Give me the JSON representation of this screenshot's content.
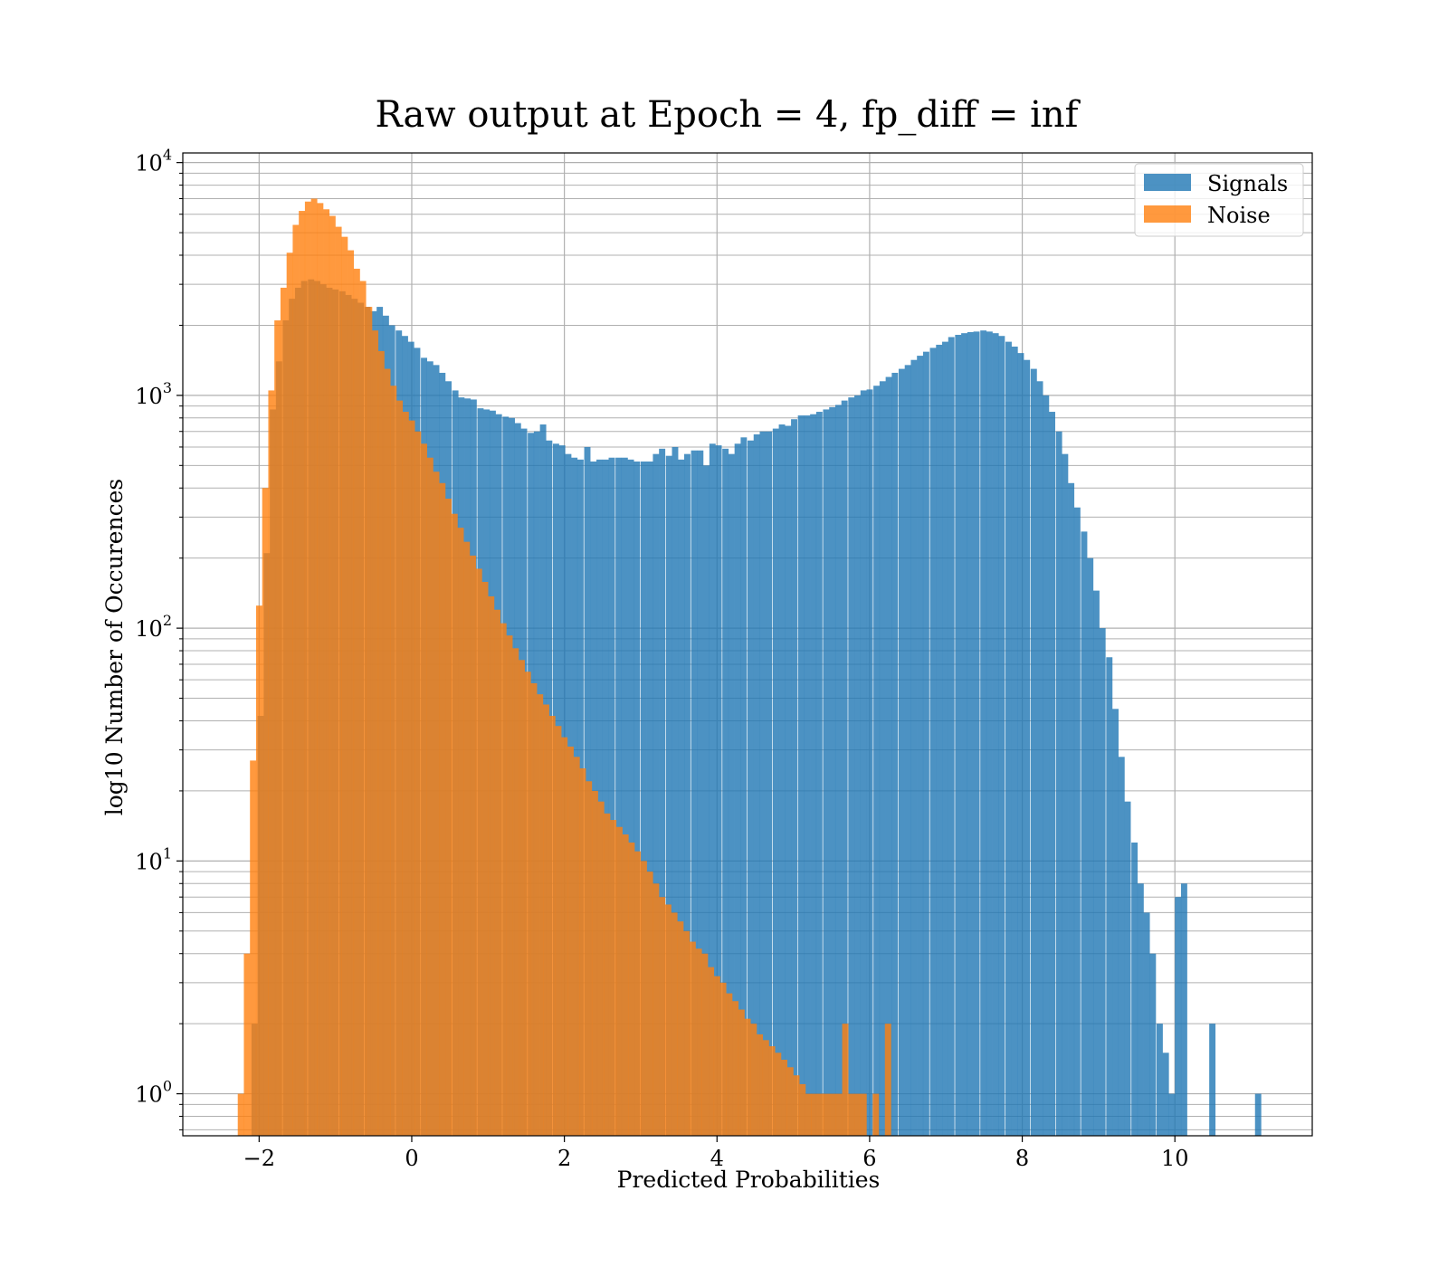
{
  "chart_data": {
    "type": "bar",
    "title": "Raw output at Epoch = 4, fp_diff = inf",
    "xlabel": "Predicted Probabilities",
    "ylabel": "log10 Number of Occurences",
    "xlim": [
      -3,
      11.8
    ],
    "ylim": [
      0.66,
      11000
    ],
    "yscale": "log",
    "xticks": [
      -2,
      0,
      2,
      4,
      6,
      8,
      10
    ],
    "xtick_labels": [
      "−2",
      "0",
      "2",
      "4",
      "6",
      "8",
      "10"
    ],
    "yticks": [
      {
        "value": 1,
        "base": "10",
        "exp": "0"
      },
      {
        "value": 10,
        "base": "10",
        "exp": "1"
      },
      {
        "value": 100,
        "base": "10",
        "exp": "2"
      },
      {
        "value": 1000,
        "base": "10",
        "exp": "3"
      },
      {
        "value": 10000,
        "base": "10",
        "exp": "4"
      }
    ],
    "grid": true,
    "legend_position": "top-right",
    "series": [
      {
        "name": "Signals",
        "color": "#1f77b4",
        "opacity": 0.8,
        "bins": [
          [
            -2.1,
            2
          ],
          [
            -2.02,
            42
          ],
          [
            -1.94,
            210
          ],
          [
            -1.86,
            870
          ],
          [
            -1.78,
            1400
          ],
          [
            -1.69,
            2100
          ],
          [
            -1.61,
            2600
          ],
          [
            -1.53,
            2900
          ],
          [
            -1.45,
            3100
          ],
          [
            -1.36,
            3150
          ],
          [
            -1.28,
            3100
          ],
          [
            -1.2,
            3000
          ],
          [
            -1.12,
            2900
          ],
          [
            -1.04,
            2850
          ],
          [
            -0.95,
            2800
          ],
          [
            -0.87,
            2700
          ],
          [
            -0.79,
            2600
          ],
          [
            -0.71,
            2500
          ],
          [
            -0.62,
            2400
          ],
          [
            -0.54,
            2300
          ],
          [
            -0.46,
            2400
          ],
          [
            -0.38,
            2200
          ],
          [
            -0.3,
            2000
          ],
          [
            -0.21,
            1900
          ],
          [
            -0.13,
            1800
          ],
          [
            -0.05,
            1700
          ],
          [
            0.03,
            1600
          ],
          [
            0.12,
            1450
          ],
          [
            0.2,
            1400
          ],
          [
            0.28,
            1350
          ],
          [
            0.36,
            1250
          ],
          [
            0.44,
            1150
          ],
          [
            0.53,
            1050
          ],
          [
            0.61,
            980
          ],
          [
            0.69,
            970
          ],
          [
            0.77,
            960
          ],
          [
            0.86,
            880
          ],
          [
            0.94,
            870
          ],
          [
            1.02,
            860
          ],
          [
            1.1,
            830
          ],
          [
            1.19,
            810
          ],
          [
            1.27,
            800
          ],
          [
            1.35,
            760
          ],
          [
            1.43,
            720
          ],
          [
            1.52,
            690
          ],
          [
            1.6,
            700
          ],
          [
            1.68,
            750
          ],
          [
            1.76,
            640
          ],
          [
            1.85,
            620
          ],
          [
            1.93,
            610
          ],
          [
            2.01,
            560
          ],
          [
            2.09,
            540
          ],
          [
            2.17,
            530
          ],
          [
            2.26,
            600
          ],
          [
            2.34,
            520
          ],
          [
            2.42,
            530
          ],
          [
            2.5,
            530
          ],
          [
            2.58,
            540
          ],
          [
            2.67,
            540
          ],
          [
            2.75,
            540
          ],
          [
            2.83,
            530
          ],
          [
            2.91,
            520
          ],
          [
            3.0,
            520
          ],
          [
            3.08,
            520
          ],
          [
            3.16,
            560
          ],
          [
            3.24,
            590
          ],
          [
            3.33,
            550
          ],
          [
            3.41,
            600
          ],
          [
            3.49,
            530
          ],
          [
            3.57,
            560
          ],
          [
            3.66,
            580
          ],
          [
            3.74,
            580
          ],
          [
            3.82,
            500
          ],
          [
            3.9,
            620
          ],
          [
            3.98,
            610
          ],
          [
            4.07,
            590
          ],
          [
            4.15,
            560
          ],
          [
            4.23,
            620
          ],
          [
            4.31,
            660
          ],
          [
            4.4,
            640
          ],
          [
            4.48,
            680
          ],
          [
            4.56,
            700
          ],
          [
            4.64,
            700
          ],
          [
            4.73,
            720
          ],
          [
            4.81,
            750
          ],
          [
            4.89,
            740
          ],
          [
            4.97,
            790
          ],
          [
            5.06,
            820
          ],
          [
            5.14,
            820
          ],
          [
            5.22,
            830
          ],
          [
            5.3,
            850
          ],
          [
            5.39,
            870
          ],
          [
            5.47,
            890
          ],
          [
            5.55,
            910
          ],
          [
            5.63,
            950
          ],
          [
            5.72,
            980
          ],
          [
            5.8,
            1000
          ],
          [
            5.88,
            1050
          ],
          [
            5.96,
            1060
          ],
          [
            6.05,
            1100
          ],
          [
            6.13,
            1150
          ],
          [
            6.21,
            1200
          ],
          [
            6.29,
            1250
          ],
          [
            6.38,
            1300
          ],
          [
            6.46,
            1350
          ],
          [
            6.54,
            1420
          ],
          [
            6.62,
            1480
          ],
          [
            6.7,
            1540
          ],
          [
            6.79,
            1600
          ],
          [
            6.87,
            1650
          ],
          [
            6.95,
            1700
          ],
          [
            7.03,
            1780
          ],
          [
            7.12,
            1820
          ],
          [
            7.2,
            1850
          ],
          [
            7.28,
            1870
          ],
          [
            7.36,
            1880
          ],
          [
            7.45,
            1900
          ],
          [
            7.53,
            1880
          ],
          [
            7.61,
            1850
          ],
          [
            7.69,
            1800
          ],
          [
            7.78,
            1700
          ],
          [
            7.86,
            1620
          ],
          [
            7.94,
            1520
          ],
          [
            8.02,
            1420
          ],
          [
            8.11,
            1300
          ],
          [
            8.19,
            1150
          ],
          [
            8.27,
            1000
          ],
          [
            8.35,
            850
          ],
          [
            8.44,
            700
          ],
          [
            8.52,
            560
          ],
          [
            8.6,
            420
          ],
          [
            8.68,
            330
          ],
          [
            8.77,
            260
          ],
          [
            8.85,
            200
          ],
          [
            8.93,
            145
          ],
          [
            9.01,
            100
          ],
          [
            9.1,
            75
          ],
          [
            9.18,
            45
          ],
          [
            9.26,
            28
          ],
          [
            9.34,
            18
          ],
          [
            9.43,
            12
          ],
          [
            9.51,
            8
          ],
          [
            9.59,
            6
          ],
          [
            9.67,
            4
          ],
          [
            9.76,
            2
          ],
          [
            9.84,
            1.5
          ],
          [
            9.92,
            1
          ],
          [
            10.0,
            7
          ],
          [
            10.08,
            8
          ],
          [
            10.45,
            2
          ],
          [
            11.05,
            1
          ]
        ]
      },
      {
        "name": "Noise",
        "color": "#ff7f0e",
        "opacity": 0.8,
        "bins": [
          [
            -2.28,
            1
          ],
          [
            -2.2,
            4
          ],
          [
            -2.12,
            27
          ],
          [
            -2.04,
            125
          ],
          [
            -1.96,
            400
          ],
          [
            -1.88,
            1050
          ],
          [
            -1.8,
            2100
          ],
          [
            -1.72,
            2900
          ],
          [
            -1.64,
            4100
          ],
          [
            -1.56,
            5400
          ],
          [
            -1.48,
            6200
          ],
          [
            -1.4,
            6800
          ],
          [
            -1.32,
            7000
          ],
          [
            -1.24,
            6700
          ],
          [
            -1.16,
            6300
          ],
          [
            -1.08,
            5900
          ],
          [
            -1.0,
            5300
          ],
          [
            -0.92,
            4800
          ],
          [
            -0.84,
            4200
          ],
          [
            -0.76,
            3500
          ],
          [
            -0.68,
            3100
          ],
          [
            -0.6,
            2400
          ],
          [
            -0.52,
            1900
          ],
          [
            -0.44,
            1550
          ],
          [
            -0.36,
            1300
          ],
          [
            -0.28,
            1100
          ],
          [
            -0.2,
            950
          ],
          [
            -0.12,
            850
          ],
          [
            -0.04,
            780
          ],
          [
            0.04,
            700
          ],
          [
            0.12,
            620
          ],
          [
            0.2,
            540
          ],
          [
            0.28,
            470
          ],
          [
            0.36,
            420
          ],
          [
            0.44,
            360
          ],
          [
            0.52,
            310
          ],
          [
            0.6,
            270
          ],
          [
            0.68,
            235
          ],
          [
            0.76,
            205
          ],
          [
            0.84,
            180
          ],
          [
            0.92,
            158
          ],
          [
            1.0,
            137
          ],
          [
            1.08,
            120
          ],
          [
            1.16,
            105
          ],
          [
            1.24,
            93
          ],
          [
            1.32,
            82
          ],
          [
            1.4,
            73
          ],
          [
            1.48,
            65
          ],
          [
            1.56,
            58
          ],
          [
            1.64,
            52
          ],
          [
            1.72,
            47
          ],
          [
            1.8,
            42
          ],
          [
            1.88,
            38
          ],
          [
            1.96,
            34
          ],
          [
            2.04,
            31
          ],
          [
            2.12,
            28
          ],
          [
            2.2,
            25
          ],
          [
            2.28,
            22
          ],
          [
            2.36,
            20
          ],
          [
            2.44,
            18
          ],
          [
            2.52,
            16
          ],
          [
            2.6,
            15
          ],
          [
            2.68,
            14
          ],
          [
            2.76,
            13
          ],
          [
            2.84,
            12
          ],
          [
            2.92,
            11
          ],
          [
            3.0,
            10
          ],
          [
            3.08,
            9
          ],
          [
            3.16,
            8
          ],
          [
            3.24,
            7
          ],
          [
            3.32,
            6.5
          ],
          [
            3.4,
            6
          ],
          [
            3.48,
            5.5
          ],
          [
            3.56,
            5
          ],
          [
            3.64,
            4.5
          ],
          [
            3.72,
            4.2
          ],
          [
            3.8,
            4
          ],
          [
            3.88,
            3.5
          ],
          [
            3.96,
            3.2
          ],
          [
            4.04,
            3
          ],
          [
            4.12,
            2.7
          ],
          [
            4.2,
            2.5
          ],
          [
            4.28,
            2.3
          ],
          [
            4.36,
            2.1
          ],
          [
            4.44,
            2
          ],
          [
            4.52,
            1.8
          ],
          [
            4.6,
            1.7
          ],
          [
            4.68,
            1.6
          ],
          [
            4.76,
            1.5
          ],
          [
            4.84,
            1.4
          ],
          [
            4.92,
            1.3
          ],
          [
            5.0,
            1.2
          ],
          [
            5.08,
            1.1
          ],
          [
            5.16,
            1
          ],
          [
            5.24,
            1
          ],
          [
            5.32,
            1
          ],
          [
            5.4,
            1
          ],
          [
            5.48,
            1
          ],
          [
            5.56,
            1
          ],
          [
            5.64,
            2
          ],
          [
            5.72,
            1
          ],
          [
            5.8,
            1
          ],
          [
            5.88,
            1
          ],
          [
            6.04,
            1
          ],
          [
            6.2,
            2
          ]
        ]
      }
    ]
  }
}
